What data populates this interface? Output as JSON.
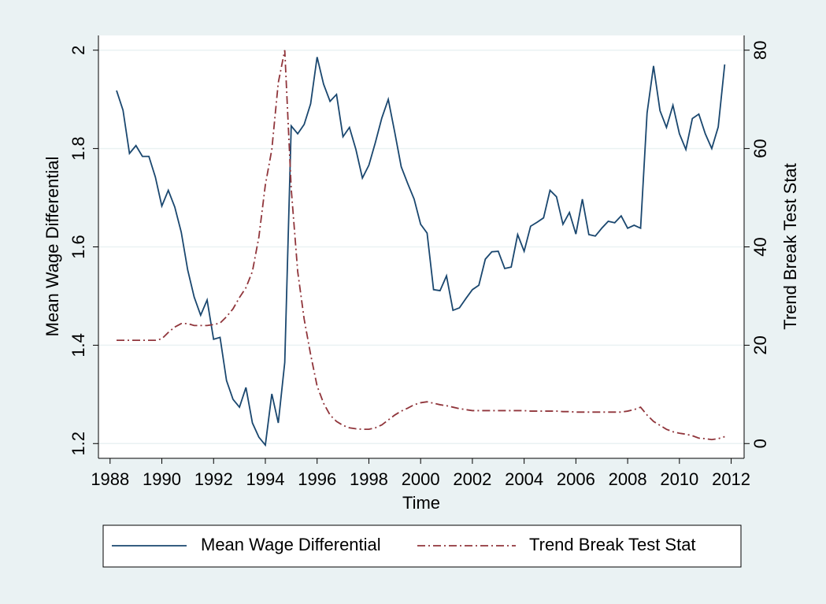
{
  "chart_data": {
    "type": "line",
    "x_label": "Time",
    "y_label": "Mean Wage Differential",
    "y2_label": "Trend Break Test Stat",
    "x": [
      1988.25,
      1988.5,
      1988.75,
      1989,
      1989.25,
      1989.5,
      1989.75,
      1990,
      1990.25,
      1990.5,
      1990.75,
      1991,
      1991.25,
      1991.5,
      1991.75,
      1992,
      1992.25,
      1992.5,
      1992.75,
      1993,
      1993.25,
      1993.5,
      1993.75,
      1994,
      1994.25,
      1994.5,
      1994.75,
      1995,
      1995.25,
      1995.5,
      1995.75,
      1996,
      1996.25,
      1996.5,
      1996.75,
      1997,
      1997.25,
      1997.5,
      1997.75,
      1998,
      1998.25,
      1998.5,
      1998.75,
      1999,
      1999.25,
      1999.5,
      1999.75,
      2000,
      2000.25,
      2000.5,
      2000.75,
      2001,
      2001.25,
      2001.5,
      2001.75,
      2002,
      2002.25,
      2002.5,
      2002.75,
      2003,
      2003.25,
      2003.5,
      2003.75,
      2004,
      2004.25,
      2004.5,
      2004.75,
      2005,
      2005.25,
      2005.5,
      2005.75,
      2006,
      2006.25,
      2006.5,
      2006.75,
      2007,
      2007.25,
      2007.5,
      2007.75,
      2008,
      2008.25,
      2008.5,
      2008.75,
      2009,
      2009.25,
      2009.5,
      2009.75,
      2010,
      2010.25,
      2010.5,
      2010.75,
      2011,
      2011.25,
      2011.5,
      2011.75
    ],
    "series": [
      {
        "name": "Mean Wage Differential",
        "color": "#1a476f",
        "axis": "y",
        "dash": "solid",
        "values": [
          1.918,
          1.878,
          1.79,
          1.806,
          1.784,
          1.784,
          1.742,
          1.683,
          1.715,
          1.681,
          1.63,
          1.553,
          1.498,
          1.461,
          1.492,
          1.412,
          1.416,
          1.328,
          1.29,
          1.274,
          1.314,
          1.242,
          1.213,
          1.197,
          1.301,
          1.242,
          1.365,
          1.846,
          1.83,
          1.849,
          1.891,
          1.986,
          1.931,
          1.896,
          1.91,
          1.824,
          1.843,
          1.798,
          1.74,
          1.766,
          1.812,
          1.862,
          1.9,
          1.833,
          1.763,
          1.729,
          1.697,
          1.646,
          1.628,
          1.513,
          1.511,
          1.541,
          1.471,
          1.476,
          1.495,
          1.513,
          1.522,
          1.575,
          1.59,
          1.591,
          1.556,
          1.559,
          1.625,
          1.591,
          1.642,
          1.65,
          1.659,
          1.715,
          1.702,
          1.646,
          1.67,
          1.626,
          1.697,
          1.625,
          1.622,
          1.638,
          1.652,
          1.649,
          1.663,
          1.638,
          1.644,
          1.638,
          1.872,
          1.968,
          1.877,
          1.843,
          1.888,
          1.83,
          1.798,
          1.861,
          1.87,
          1.83,
          1.8,
          1.844,
          1.971
        ]
      },
      {
        "name": "Trend Break Test Stat",
        "color": "#90353b",
        "axis": "y2",
        "dash": "dash-dot",
        "values": [
          21,
          21,
          21,
          21,
          21,
          21,
          21,
          21.3,
          22.6,
          23.7,
          24.4,
          24.4,
          24,
          24,
          24,
          24.2,
          24.5,
          25.8,
          27.4,
          29.7,
          31.7,
          35,
          42,
          52.6,
          59.8,
          73.4,
          80,
          51.8,
          35,
          25.3,
          18.1,
          11.7,
          8.2,
          5.8,
          4.5,
          3.7,
          3.2,
          3,
          2.9,
          2.9,
          3.2,
          3.8,
          4.8,
          5.8,
          6.6,
          7.2,
          7.9,
          8.3,
          8.5,
          8.2,
          7.9,
          7.7,
          7.4,
          7.1,
          6.9,
          6.7,
          6.7,
          6.7,
          6.7,
          6.7,
          6.7,
          6.7,
          6.7,
          6.7,
          6.6,
          6.6,
          6.6,
          6.6,
          6.6,
          6.5,
          6.5,
          6.4,
          6.4,
          6.4,
          6.4,
          6.4,
          6.4,
          6.4,
          6.4,
          6.6,
          6.9,
          7.4,
          5.8,
          4.5,
          3.7,
          2.9,
          2.4,
          2.1,
          1.9,
          1.6,
          1.1,
          1,
          0.8,
          1,
          1.4
        ]
      }
    ],
    "xlim": [
      1987.55,
      2012.5
    ],
    "xticks": [
      1988,
      1990,
      1992,
      1994,
      1996,
      1998,
      2000,
      2002,
      2004,
      2006,
      2008,
      2010,
      2012
    ],
    "ylim": [
      1.17,
      2.03
    ],
    "yticks": [
      1.2,
      1.4,
      1.6,
      1.8,
      2
    ],
    "y2lim": [
      -3,
      83
    ],
    "y2ticks": [
      0,
      20,
      40,
      60,
      80
    ],
    "grid": true,
    "legend": "bottom"
  }
}
